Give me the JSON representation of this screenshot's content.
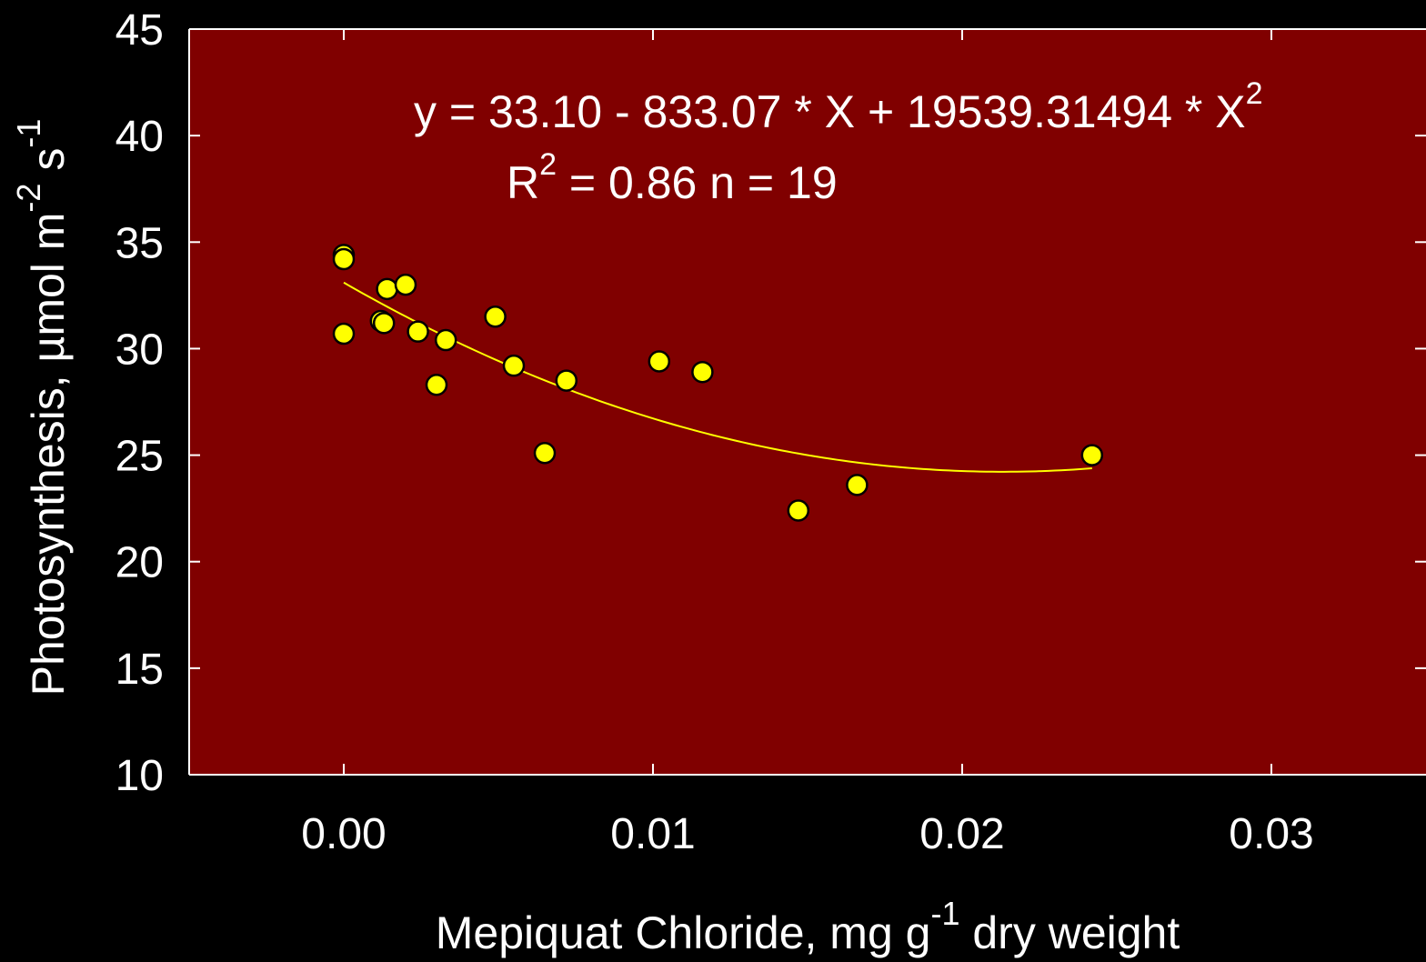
{
  "chart_data": {
    "type": "scatter",
    "xlabel_main": "Mepiquat Chloride, mg g",
    "xlabel_sup": "-1",
    "xlabel_tail": " dry weight",
    "ylabel_main": "Photosynthesis, µmol m",
    "ylabel_sup1": "-2",
    "ylabel_mid": " s",
    "ylabel_sup2": "-1",
    "xlim": [
      -0.005,
      0.035
    ],
    "ylim": [
      10,
      45
    ],
    "xticks": [
      0.0,
      0.01,
      0.02,
      0.03
    ],
    "xtick_labels": [
      "0.00",
      "0.01",
      "0.02",
      "0.03"
    ],
    "yticks": [
      10,
      15,
      20,
      25,
      30,
      35,
      40,
      45
    ],
    "ytick_labels": [
      "10",
      "15",
      "20",
      "25",
      "30",
      "35",
      "40",
      "45"
    ],
    "grid": false,
    "equation": {
      "line1_main": "y = 33.10 - 833.07 * X + 19539.31494 * X",
      "line1_sup": "2",
      "line2_r": "R",
      "line2_sup": "2",
      "line2_tail": " = 0.86  n = 19"
    },
    "fit": {
      "a": 33.1,
      "b": -833.07,
      "c": 19539.31494,
      "x_range": [
        0.0,
        0.0242
      ]
    },
    "points": [
      {
        "x": 0.0,
        "y": 34.4
      },
      {
        "x": 0.0,
        "y": 34.2
      },
      {
        "x": 0.0,
        "y": 30.7
      },
      {
        "x": 0.0012,
        "y": 31.3
      },
      {
        "x": 0.0013,
        "y": 31.2
      },
      {
        "x": 0.0014,
        "y": 32.8
      },
      {
        "x": 0.002,
        "y": 33.0
      },
      {
        "x": 0.0024,
        "y": 30.8
      },
      {
        "x": 0.003,
        "y": 28.3
      },
      {
        "x": 0.0033,
        "y": 30.4
      },
      {
        "x": 0.0049,
        "y": 31.5
      },
      {
        "x": 0.0055,
        "y": 29.2
      },
      {
        "x": 0.0065,
        "y": 25.1
      },
      {
        "x": 0.0072,
        "y": 28.5
      },
      {
        "x": 0.0102,
        "y": 29.4
      },
      {
        "x": 0.0116,
        "y": 28.9
      },
      {
        "x": 0.0147,
        "y": 22.4
      },
      {
        "x": 0.0166,
        "y": 23.6
      },
      {
        "x": 0.0242,
        "y": 25.0
      }
    ],
    "colors": {
      "background": "#000000",
      "plot_area": "#800000",
      "axis": "#ffffff",
      "marker_fill": "#ffff00",
      "marker_edge": "#000000",
      "fit_line": "#ffff00"
    }
  }
}
